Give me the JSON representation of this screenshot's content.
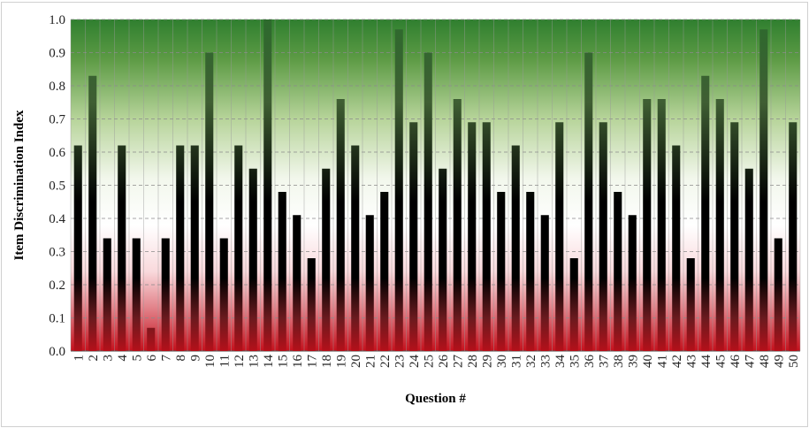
{
  "chart_data": {
    "type": "bar",
    "title": "",
    "xlabel": "Question #",
    "ylabel": "Item Discrimination Index",
    "ylim": [
      0,
      1.0
    ],
    "yticks": [
      "0.0",
      "0.1",
      "0.2",
      "0.3",
      "0.4",
      "0.5",
      "0.6",
      "0.7",
      "0.8",
      "0.9",
      "1.0"
    ],
    "grid": true,
    "legend": "none",
    "categories": [
      "1",
      "2",
      "3",
      "4",
      "5",
      "6",
      "7",
      "8",
      "9",
      "10",
      "11",
      "12",
      "13",
      "14",
      "15",
      "16",
      "17",
      "18",
      "19",
      "20",
      "21",
      "22",
      "23",
      "24",
      "25",
      "26",
      "27",
      "28",
      "29",
      "30",
      "31",
      "32",
      "33",
      "34",
      "35",
      "36",
      "37",
      "38",
      "39",
      "40",
      "41",
      "42",
      "43",
      "44",
      "45",
      "46",
      "47",
      "48",
      "49",
      "50"
    ],
    "values": [
      0.62,
      0.83,
      0.34,
      0.62,
      0.34,
      0.07,
      0.34,
      0.62,
      0.62,
      0.9,
      0.34,
      0.62,
      0.55,
      1.0,
      0.48,
      0.41,
      0.28,
      0.55,
      0.76,
      0.62,
      0.41,
      0.48,
      0.97,
      0.69,
      0.9,
      0.55,
      0.76,
      0.69,
      0.69,
      0.48,
      0.62,
      0.48,
      0.41,
      0.69,
      0.28,
      0.9,
      0.69,
      0.48,
      0.41,
      0.76,
      0.76,
      0.62,
      0.28,
      0.83,
      0.76,
      0.69,
      0.55,
      0.97,
      0.34,
      0.69
    ],
    "colors": {
      "top_band": "#2e7d2e",
      "mid_band": "#ffffff",
      "bottom_band": "#c8141e",
      "bar_dark": "#000000",
      "bar_top": "#3c6e32"
    }
  }
}
